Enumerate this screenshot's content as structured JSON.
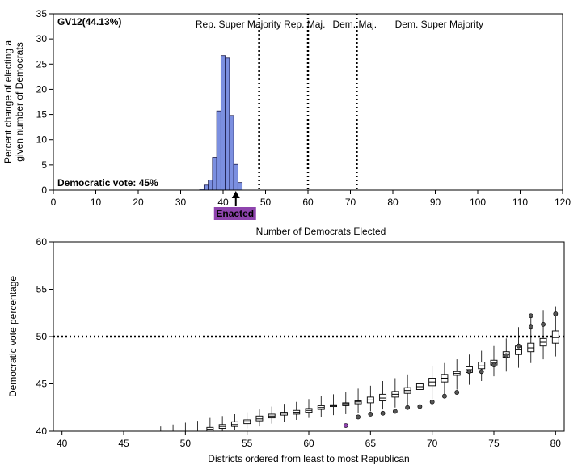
{
  "chart_data": [
    {
      "type": "bar",
      "panel_label": "GV12(44.13%)",
      "annotation": "Democratic vote: 45%",
      "xlabel": "Number of Democrats Elected",
      "ylabel_lines": [
        "Percent change of electing a",
        "given number of Democrats"
      ],
      "xlim": [
        0,
        120
      ],
      "ylim": [
        0,
        35
      ],
      "xticks": [
        0,
        10,
        20,
        30,
        40,
        50,
        60,
        70,
        80,
        90,
        100,
        110,
        120
      ],
      "yticks": [
        0,
        5,
        10,
        15,
        20,
        25,
        30,
        35
      ],
      "bar_color": "#7b8fe0",
      "histogram": {
        "x": [
          35,
          36,
          37,
          38,
          39,
          40,
          41,
          42,
          43,
          44
        ],
        "values": [
          0.2,
          1.0,
          2.0,
          6.5,
          15.7,
          26.7,
          26.2,
          14.8,
          5.1,
          1.5
        ]
      },
      "thresholds": [
        48.5,
        60,
        71.5
      ],
      "regions": [
        {
          "label": "Rep. Super Majority",
          "x": 33.5
        },
        {
          "label": "Rep. Maj.",
          "x": 54.3
        },
        {
          "label": "Dem. Maj.",
          "x": 65.8
        },
        {
          "label": "Dem. Super Majority",
          "x": 80.5
        }
      ],
      "enacted": {
        "label": "Enacted",
        "value": 43,
        "color": "#8e44ad"
      }
    },
    {
      "type": "box",
      "xlabel": "Districts ordered from least to most Republican",
      "ylabel": "Democratic vote percentage",
      "xlim": [
        39.3,
        80.7
      ],
      "ylim": [
        40,
        60
      ],
      "xticks": [
        40,
        45,
        50,
        55,
        60,
        65,
        70,
        75,
        80
      ],
      "yticks": [
        40,
        45,
        50,
        55,
        60
      ],
      "threshold": 50,
      "boxes": [
        {
          "x": 48,
          "lo": 39.0,
          "hi": 40.5
        },
        {
          "x": 49,
          "lo": 39.3,
          "hi": 40.7
        },
        {
          "x": 50,
          "lo": 39.5,
          "hi": 40.9
        },
        {
          "x": 51,
          "lo": 39.6,
          "hi": 41.1
        },
        {
          "x": 52,
          "lo": 39.9,
          "q1": 40.0,
          "med": 40.2,
          "q3": 40.4,
          "hi": 41.4
        },
        {
          "x": 53,
          "lo": 39.9,
          "q1": 40.3,
          "med": 40.5,
          "q3": 40.7,
          "hi": 41.6
        },
        {
          "x": 54,
          "lo": 40.1,
          "q1": 40.5,
          "med": 40.7,
          "q3": 41.0,
          "hi": 41.8
        },
        {
          "x": 55,
          "lo": 40.3,
          "q1": 40.8,
          "med": 41.0,
          "q3": 41.2,
          "hi": 42.0
        },
        {
          "x": 56,
          "lo": 40.5,
          "q1": 41.1,
          "med": 41.3,
          "q3": 41.6,
          "hi": 42.3
        },
        {
          "x": 57,
          "lo": 40.8,
          "q1": 41.4,
          "med": 41.6,
          "q3": 41.8,
          "hi": 42.6
        },
        {
          "x": 58,
          "lo": 41.0,
          "q1": 41.7,
          "med": 41.9,
          "q3": 42.0,
          "hi": 42.9
        },
        {
          "x": 59,
          "lo": 41.2,
          "q1": 41.8,
          "med": 42.0,
          "q3": 42.2,
          "hi": 43.1
        },
        {
          "x": 60,
          "lo": 41.4,
          "q1": 42.0,
          "med": 42.2,
          "q3": 42.4,
          "hi": 43.4
        },
        {
          "x": 61,
          "lo": 41.5,
          "q1": 42.3,
          "med": 42.5,
          "q3": 42.7,
          "hi": 43.7
        },
        {
          "x": 62,
          "lo": 41.7,
          "q1": 42.6,
          "med": 42.7,
          "q3": 42.8,
          "hi": 43.9
        },
        {
          "x": 63,
          "lo": 41.8,
          "q1": 42.7,
          "med": 42.9,
          "q3": 43.0,
          "hi": 44.1,
          "outliers": [
            40.6
          ]
        },
        {
          "x": 64,
          "lo": 41.9,
          "q1": 42.9,
          "med": 43.1,
          "q3": 43.2,
          "hi": 44.5,
          "outliers": [
            41.5
          ]
        },
        {
          "x": 65,
          "lo": 42.1,
          "q1": 43.0,
          "med": 43.3,
          "q3": 43.6,
          "hi": 44.8,
          "outliers": [
            41.8
          ]
        },
        {
          "x": 66,
          "lo": 42.3,
          "q1": 43.2,
          "med": 43.5,
          "q3": 43.9,
          "hi": 45.3,
          "outliers": [
            41.9
          ]
        },
        {
          "x": 67,
          "lo": 42.5,
          "q1": 43.6,
          "med": 43.9,
          "q3": 44.2,
          "hi": 45.6,
          "outliers": [
            42.1
          ]
        },
        {
          "x": 68,
          "lo": 42.8,
          "q1": 44.0,
          "med": 44.3,
          "q3": 44.6,
          "hi": 46.0,
          "outliers": [
            42.5
          ]
        },
        {
          "x": 69,
          "lo": 43.0,
          "q1": 44.4,
          "med": 44.7,
          "q3": 45.0,
          "hi": 46.5,
          "outliers": [
            42.6
          ]
        },
        {
          "x": 70,
          "lo": 43.4,
          "q1": 44.8,
          "med": 45.2,
          "q3": 45.6,
          "hi": 46.9,
          "outliers": [
            43.1
          ]
        },
        {
          "x": 71,
          "lo": 43.9,
          "q1": 45.2,
          "med": 45.6,
          "q3": 46.0,
          "hi": 47.2,
          "outliers": [
            43.7
          ]
        },
        {
          "x": 72,
          "lo": 44.4,
          "q1": 45.9,
          "med": 46.1,
          "q3": 46.3,
          "hi": 47.6,
          "outliers": [
            44.1
          ]
        },
        {
          "x": 73,
          "lo": 44.9,
          "q1": 46.2,
          "med": 46.5,
          "q3": 46.8,
          "hi": 48.1,
          "outliers": [
            46.3
          ]
        },
        {
          "x": 74,
          "lo": 45.3,
          "q1": 46.6,
          "med": 46.9,
          "q3": 47.3,
          "hi": 48.5,
          "outliers": [
            46.3
          ]
        },
        {
          "x": 75,
          "lo": 45.8,
          "q1": 47.0,
          "med": 47.2,
          "q3": 47.5,
          "hi": 49.0,
          "outliers": [
            47.0
          ]
        },
        {
          "x": 76,
          "lo": 46.3,
          "q1": 47.8,
          "med": 48.1,
          "q3": 48.4,
          "hi": 49.8,
          "outliers": [
            48.0
          ]
        },
        {
          "x": 77,
          "lo": 46.7,
          "q1": 48.1,
          "med": 48.6,
          "q3": 49.0,
          "hi": 51.0,
          "outliers": [
            49.0
          ]
        },
        {
          "x": 78,
          "lo": 47.2,
          "q1": 48.4,
          "med": 48.8,
          "q3": 49.3,
          "hi": 52.0,
          "outliers": [
            51.0,
            52.2
          ]
        },
        {
          "x": 79,
          "lo": 47.6,
          "q1": 49.0,
          "med": 49.4,
          "q3": 49.8,
          "hi": 52.8,
          "outliers": [
            51.3
          ]
        },
        {
          "x": 80,
          "lo": 47.9,
          "q1": 49.3,
          "med": 49.9,
          "q3": 50.6,
          "hi": 53.2,
          "outliers": [
            52.4
          ]
        }
      ],
      "outlier_color": "#555555",
      "highlight_outlier": {
        "x": 63,
        "value": 40.6,
        "color": "#8e44ad"
      }
    }
  ]
}
